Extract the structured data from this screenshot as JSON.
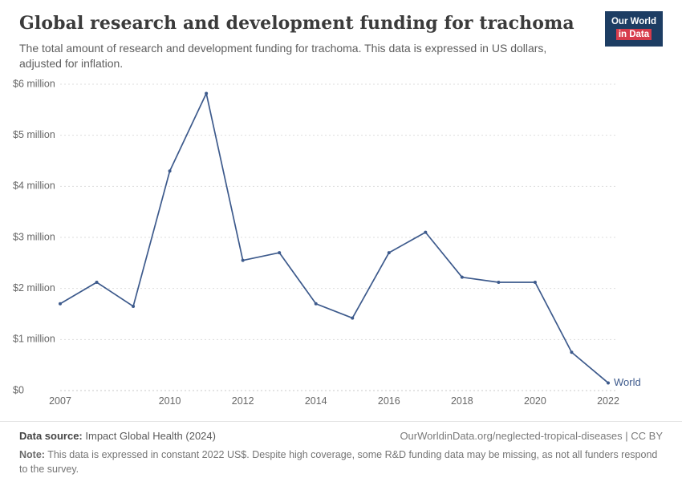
{
  "header": {
    "title": "Global research and development funding for trachoma",
    "subtitle": "The total amount of research and development funding for trachoma. This data is expressed in US dollars, adjusted for inflation.",
    "logo": {
      "line1": "Our World",
      "line2": "in Data"
    }
  },
  "chart_data": {
    "type": "line",
    "title": "Global research and development funding for trachoma",
    "x": [
      2007,
      2008,
      2009,
      2010,
      2011,
      2012,
      2013,
      2014,
      2015,
      2016,
      2017,
      2018,
      2019,
      2020,
      2021,
      2022
    ],
    "x_ticks": [
      2007,
      2010,
      2012,
      2014,
      2016,
      2018,
      2020,
      2022
    ],
    "series": [
      {
        "name": "World",
        "color": "#3d5a8c",
        "values": [
          1.7,
          2.12,
          1.65,
          4.3,
          5.82,
          2.55,
          2.7,
          1.7,
          1.42,
          2.7,
          3.1,
          2.22,
          2.12,
          2.12,
          0.75,
          0.15
        ]
      }
    ],
    "unit": "US$ million, constant 2022 US$",
    "ylim": [
      0,
      6
    ],
    "y_ticks": [
      {
        "value": 0,
        "label": "$0"
      },
      {
        "value": 1,
        "label": "$1 million"
      },
      {
        "value": 2,
        "label": "$2 million"
      },
      {
        "value": 3,
        "label": "$3 million"
      },
      {
        "value": 4,
        "label": "$4 million"
      },
      {
        "value": 5,
        "label": "$5 million"
      },
      {
        "value": 6,
        "label": "$6 million"
      }
    ],
    "grid": "horizontal-dashed",
    "legend_position": "end-of-line-label",
    "colors": {
      "grid": "#dddddd",
      "axis_text": "#666666"
    }
  },
  "footer": {
    "source_label": "Data source:",
    "source_value": "Impact Global Health (2024)",
    "rights": "OurWorldinData.org/neglected-tropical-diseases | CC BY",
    "note_label": "Note:",
    "note_text": "This data is expressed in constant 2022 US$. Despite high coverage, some R&D funding data may be missing, as not all funders respond to the survey."
  }
}
